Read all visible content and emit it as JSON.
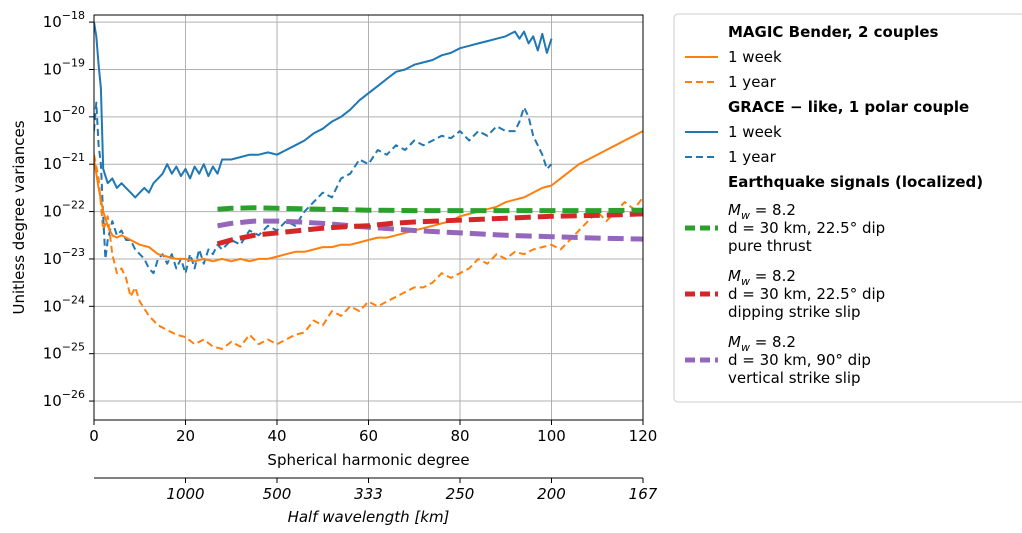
{
  "chart_data": {
    "type": "line",
    "xlabel": "Spherical harmonic degree",
    "ylabel": "Unitless degree variances",
    "xlim": [
      0,
      120
    ],
    "ylim_log10": [
      -26.4,
      -17.85
    ],
    "yscale": "log",
    "grid": true,
    "x_ticks": [
      0,
      20,
      40,
      60,
      80,
      100,
      120
    ],
    "y_ticks": [
      {
        "exp": -18,
        "label_base": "10",
        "label_exp": "−18"
      },
      {
        "exp": -19,
        "label_base": "10",
        "label_exp": "−19"
      },
      {
        "exp": -20,
        "label_base": "10",
        "label_exp": "−20"
      },
      {
        "exp": -21,
        "label_base": "10",
        "label_exp": "−21"
      },
      {
        "exp": -22,
        "label_base": "10",
        "label_exp": "−22"
      },
      {
        "exp": -23,
        "label_base": "10",
        "label_exp": "−23"
      },
      {
        "exp": -24,
        "label_base": "10",
        "label_exp": "−24"
      },
      {
        "exp": -25,
        "label_base": "10",
        "label_exp": "−25"
      },
      {
        "exp": -26,
        "label_base": "10",
        "label_exp": "−26"
      }
    ],
    "secondary_axis": {
      "label": "Half wavelength [km]",
      "ticks": [
        {
          "degree": 20,
          "label": "1000"
        },
        {
          "degree": 40,
          "label": "500"
        },
        {
          "degree": 60,
          "label": "333"
        },
        {
          "degree": 80,
          "label": "250"
        },
        {
          "degree": 100,
          "label": "200"
        },
        {
          "degree": 120,
          "label": "167"
        }
      ]
    },
    "legend": {
      "placement": "outside-right",
      "groups": [
        {
          "title": "MAGIC Bender,  2 couples",
          "entries": [
            {
              "label": "1 week",
              "series": "magic_week"
            },
            {
              "label": "1 year",
              "series": "magic_year"
            }
          ]
        },
        {
          "title": "GRACE − like,  1 polar couple",
          "entries": [
            {
              "label": "1 week",
              "series": "grace_week"
            },
            {
              "label": "1 year",
              "series": "grace_year"
            }
          ]
        },
        {
          "title": "Earthquake signals (localized)",
          "entries": [
            {
              "series": "eq_thrust",
              "mw_symbol": "M",
              "mw_sub": "w",
              "mw_value": " = 8.2",
              "lines": [
                "d = 30 km, 22.5° dip",
                "pure thrust"
              ]
            },
            {
              "series": "eq_dipping",
              "mw_symbol": "M",
              "mw_sub": "w",
              "mw_value": " = 8.2",
              "lines": [
                "d = 30 km, 22.5° dip",
                "dipping strike slip"
              ]
            },
            {
              "series": "eq_vertical",
              "mw_symbol": "M",
              "mw_sub": "w",
              "mw_value": " = 8.2",
              "lines": [
                "d = 30 km, 90° dip",
                "vertical strike slip"
              ]
            }
          ]
        }
      ]
    },
    "series": [
      {
        "id": "magic_week",
        "color": "#ff7f0e",
        "style": "solid",
        "width": 2,
        "x": [
          0,
          1,
          2,
          3,
          4,
          5,
          6,
          7,
          8,
          10,
          12,
          14,
          16,
          18,
          20,
          22,
          24,
          26,
          28,
          30,
          32,
          34,
          36,
          38,
          40,
          42,
          44,
          46,
          48,
          50,
          52,
          54,
          56,
          58,
          60,
          62,
          64,
          66,
          68,
          70,
          72,
          74,
          76,
          78,
          80,
          82,
          84,
          86,
          88,
          90,
          92,
          94,
          96,
          98,
          100,
          102,
          104,
          106,
          108,
          110,
          112,
          114,
          116,
          118,
          120
        ],
        "log10": [
          -20.9,
          -21.5,
          -22.0,
          -22.3,
          -22.5,
          -22.55,
          -22.5,
          -22.55,
          -22.6,
          -22.7,
          -22.75,
          -22.9,
          -22.95,
          -23.0,
          -23.0,
          -23.05,
          -23.0,
          -23.05,
          -23.0,
          -23.05,
          -23.0,
          -23.05,
          -23.0,
          -23.0,
          -22.95,
          -22.9,
          -22.85,
          -22.85,
          -22.8,
          -22.75,
          -22.75,
          -22.7,
          -22.7,
          -22.65,
          -22.6,
          -22.55,
          -22.55,
          -22.5,
          -22.45,
          -22.4,
          -22.35,
          -22.3,
          -22.25,
          -22.2,
          -22.1,
          -22.05,
          -22.0,
          -21.95,
          -21.9,
          -21.8,
          -21.75,
          -21.7,
          -21.6,
          -21.5,
          -21.45,
          -21.3,
          -21.15,
          -21.0,
          -20.9,
          -20.8,
          -20.7,
          -20.6,
          -20.5,
          -20.4,
          -20.3
        ]
      },
      {
        "id": "magic_year",
        "color": "#ff7f0e",
        "style": "dashed",
        "width": 2,
        "x": [
          0,
          1,
          2,
          3,
          4,
          5,
          6,
          7,
          8,
          9,
          10,
          12,
          14,
          16,
          18,
          20,
          22,
          24,
          26,
          28,
          30,
          32,
          34,
          36,
          38,
          40,
          42,
          44,
          46,
          48,
          50,
          52,
          54,
          56,
          58,
          60,
          62,
          64,
          66,
          68,
          70,
          72,
          74,
          76,
          78,
          80,
          82,
          84,
          86,
          88,
          90,
          92,
          94,
          96,
          98,
          100,
          102,
          104,
          106,
          108,
          110,
          112,
          114,
          116,
          118,
          120
        ],
        "log10": [
          -20.8,
          -21.3,
          -22.4,
          -22.1,
          -22.9,
          -23.3,
          -23.2,
          -23.4,
          -23.8,
          -23.6,
          -23.9,
          -24.2,
          -24.4,
          -24.5,
          -24.6,
          -24.65,
          -24.8,
          -24.7,
          -24.85,
          -24.9,
          -24.75,
          -24.85,
          -24.6,
          -24.8,
          -24.7,
          -24.8,
          -24.7,
          -24.6,
          -24.55,
          -24.3,
          -24.4,
          -24.1,
          -24.2,
          -24.0,
          -24.1,
          -23.9,
          -24.0,
          -23.9,
          -23.8,
          -23.7,
          -23.6,
          -23.6,
          -23.5,
          -23.3,
          -23.4,
          -23.3,
          -23.2,
          -23.0,
          -23.1,
          -22.9,
          -23.0,
          -22.85,
          -22.9,
          -22.8,
          -22.75,
          -22.7,
          -22.8,
          -22.6,
          -22.4,
          -22.2,
          -22.0,
          -22.2,
          -22.0,
          -21.8,
          -21.95,
          -21.7
        ]
      },
      {
        "id": "grace_week",
        "color": "#1f77b4",
        "style": "solid",
        "width": 2,
        "x": [
          0,
          0.5,
          1,
          1.5,
          2,
          3,
          4,
          5,
          6,
          7,
          8,
          9,
          10,
          11,
          12,
          13,
          14,
          15,
          16,
          17,
          18,
          19,
          20,
          21,
          22,
          23,
          24,
          25,
          26,
          27,
          28,
          30,
          32,
          34,
          36,
          38,
          40,
          42,
          44,
          46,
          48,
          50,
          52,
          54,
          56,
          58,
          60,
          62,
          64,
          66,
          68,
          70,
          72,
          74,
          76,
          78,
          80,
          82,
          84,
          86,
          88,
          90,
          91,
          92,
          93,
          94,
          95,
          96,
          97,
          98,
          99,
          100
        ],
        "log10": [
          -18.0,
          -18.3,
          -18.9,
          -19.4,
          -21.1,
          -21.4,
          -21.3,
          -21.5,
          -21.4,
          -21.5,
          -21.6,
          -21.7,
          -21.6,
          -21.5,
          -21.6,
          -21.4,
          -21.3,
          -21.2,
          -21.0,
          -21.2,
          -21.05,
          -21.25,
          -21.1,
          -21.3,
          -21.05,
          -21.2,
          -21.0,
          -21.25,
          -21.05,
          -21.2,
          -20.9,
          -20.9,
          -20.85,
          -20.8,
          -20.8,
          -20.75,
          -20.8,
          -20.7,
          -20.6,
          -20.5,
          -20.35,
          -20.25,
          -20.1,
          -20.0,
          -19.85,
          -19.65,
          -19.5,
          -19.35,
          -19.2,
          -19.05,
          -19.0,
          -18.9,
          -18.85,
          -18.8,
          -18.7,
          -18.65,
          -18.55,
          -18.5,
          -18.45,
          -18.4,
          -18.35,
          -18.3,
          -18.25,
          -18.2,
          -18.35,
          -18.2,
          -18.45,
          -18.3,
          -18.6,
          -18.25,
          -18.65,
          -18.35
        ]
      },
      {
        "id": "grace_year",
        "color": "#1f77b4",
        "style": "dashed",
        "width": 2,
        "x": [
          0,
          0.5,
          1,
          1.5,
          2,
          2.5,
          3,
          4,
          5,
          6,
          7,
          8,
          9,
          10,
          11,
          12,
          13,
          14,
          15,
          16,
          17,
          18,
          19,
          20,
          21,
          22,
          23,
          24,
          25,
          26,
          27,
          28,
          30,
          32,
          34,
          36,
          38,
          40,
          42,
          44,
          46,
          48,
          50,
          52,
          54,
          56,
          58,
          60,
          62,
          64,
          66,
          68,
          70,
          72,
          74,
          76,
          78,
          80,
          82,
          84,
          86,
          88,
          90,
          92,
          93,
          94,
          95,
          96,
          97,
          98,
          99,
          100
        ],
        "log10": [
          -20.3,
          -19.7,
          -20.6,
          -21.0,
          -22.1,
          -23.0,
          -22.6,
          -22.2,
          -22.5,
          -22.4,
          -22.6,
          -22.6,
          -22.8,
          -22.9,
          -23.0,
          -23.2,
          -23.3,
          -23.0,
          -22.9,
          -23.1,
          -22.9,
          -23.2,
          -23.0,
          -23.3,
          -22.9,
          -23.2,
          -22.8,
          -23.1,
          -22.8,
          -22.9,
          -22.7,
          -22.8,
          -22.6,
          -22.7,
          -22.4,
          -22.5,
          -22.3,
          -22.4,
          -22.2,
          -22.3,
          -22.0,
          -21.8,
          -21.6,
          -21.7,
          -21.3,
          -21.2,
          -20.9,
          -21.0,
          -20.7,
          -20.8,
          -20.6,
          -20.7,
          -20.5,
          -20.6,
          -20.5,
          -20.4,
          -20.45,
          -20.3,
          -20.5,
          -20.3,
          -20.4,
          -20.2,
          -20.3,
          -20.3,
          -20.1,
          -19.8,
          -20.0,
          -20.4,
          -20.6,
          -20.8,
          -21.1,
          -21.0
        ]
      },
      {
        "id": "eq_thrust",
        "color": "#2ca02c",
        "style": "dashed",
        "width": 5,
        "x": [
          27,
          30,
          35,
          40,
          50,
          60,
          70,
          80,
          90,
          100,
          110,
          120
        ],
        "log10": [
          -21.95,
          -21.93,
          -21.92,
          -21.93,
          -21.95,
          -21.97,
          -21.98,
          -21.98,
          -21.98,
          -21.98,
          -21.98,
          -21.97
        ]
      },
      {
        "id": "eq_dipping",
        "color": "#d62728",
        "style": "dashed",
        "width": 5,
        "x": [
          27,
          30,
          35,
          40,
          45,
          50,
          55,
          60,
          65,
          70,
          80,
          90,
          100,
          110,
          120
        ],
        "log10": [
          -22.68,
          -22.6,
          -22.5,
          -22.45,
          -22.4,
          -22.35,
          -22.32,
          -22.3,
          -22.25,
          -22.22,
          -22.18,
          -22.14,
          -22.1,
          -22.08,
          -22.05
        ]
      },
      {
        "id": "eq_vertical",
        "color": "#9467bd",
        "style": "dashed",
        "width": 5,
        "x": [
          27,
          30,
          35,
          40,
          45,
          50,
          60,
          70,
          80,
          90,
          100,
          110,
          120
        ],
        "log10": [
          -22.3,
          -22.25,
          -22.2,
          -22.2,
          -22.22,
          -22.25,
          -22.33,
          -22.4,
          -22.45,
          -22.5,
          -22.53,
          -22.56,
          -22.58
        ]
      }
    ]
  }
}
